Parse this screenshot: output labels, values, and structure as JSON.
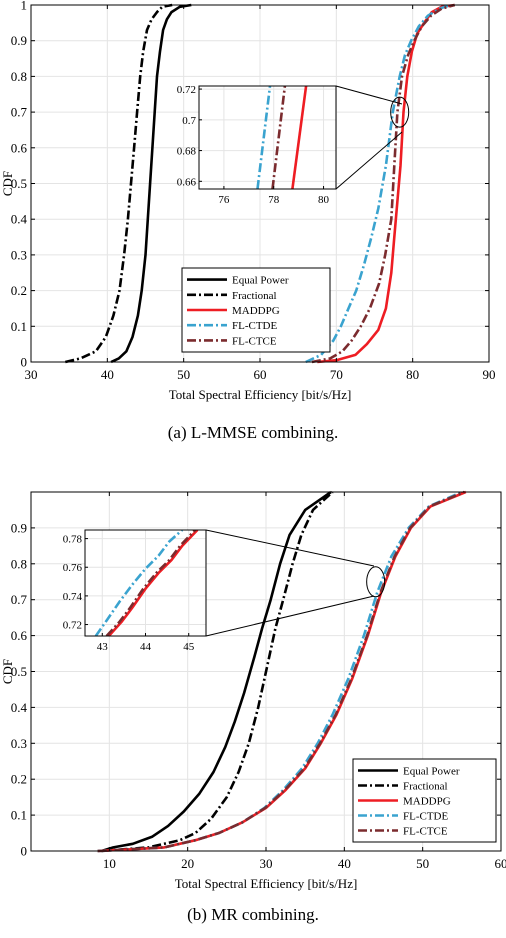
{
  "chart_data": [
    {
      "type": "line",
      "caption": "(a)  L-MMSE combining.",
      "xlabel": "Total Spectral Efficiency [bit/s/Hz]",
      "ylabel": "CDF",
      "xlim": [
        30,
        90
      ],
      "ylim": [
        0,
        1
      ],
      "xticks": [
        "30",
        "40",
        "50",
        "60",
        "70",
        "80",
        "90"
      ],
      "yticks": [
        "0",
        "0.1",
        "0.2",
        "0.3",
        "0.4",
        "0.5",
        "0.6",
        "0.7",
        "0.8",
        "0.9",
        "1"
      ],
      "grid": true,
      "legend_position": "lower-center",
      "series": [
        {
          "name": "Equal Power",
          "color": "#000000",
          "dash": "solid",
          "x": [
            40.5,
            41.5,
            42.5,
            43.3,
            44.0,
            44.5,
            45.0,
            45.3,
            45.6,
            45.9,
            46.2,
            46.5,
            46.9,
            47.3,
            47.8,
            48.4,
            49.5,
            51.0
          ],
          "y": [
            0,
            0.01,
            0.03,
            0.07,
            0.13,
            0.2,
            0.3,
            0.4,
            0.5,
            0.6,
            0.7,
            0.8,
            0.87,
            0.93,
            0.96,
            0.98,
            0.995,
            1
          ]
        },
        {
          "name": "Fractional",
          "color": "#000000",
          "dash": "dashdot",
          "x": [
            34.5,
            36.5,
            38.5,
            39.8,
            40.8,
            41.6,
            42.2,
            42.7,
            43.1,
            43.5,
            43.9,
            44.3,
            44.7,
            45.2,
            45.8,
            46.5,
            47.2,
            48.5
          ],
          "y": [
            0,
            0.01,
            0.03,
            0.07,
            0.13,
            0.2,
            0.3,
            0.4,
            0.5,
            0.6,
            0.7,
            0.8,
            0.87,
            0.93,
            0.96,
            0.98,
            0.995,
            1
          ]
        },
        {
          "name": "MADDPG",
          "color": "#ee1d23",
          "dash": "solid",
          "x": [
            67.5,
            70.0,
            72.5,
            74.0,
            75.5,
            76.5,
            77.2,
            77.6,
            78.0,
            78.4,
            78.8,
            79.3,
            79.9,
            80.6,
            81.5,
            82.5,
            83.8,
            85.5
          ],
          "y": [
            0,
            0.005,
            0.02,
            0.05,
            0.09,
            0.15,
            0.25,
            0.35,
            0.45,
            0.55,
            0.7,
            0.8,
            0.87,
            0.92,
            0.95,
            0.98,
            0.995,
            1
          ]
        },
        {
          "name": "FL-CTDE",
          "color": "#3aa3cf",
          "dash": "dashdot",
          "x": [
            66.0,
            68.0,
            69.6,
            70.6,
            71.6,
            72.6,
            73.6,
            74.6,
            75.5,
            76.5,
            77.4,
            78.3,
            79.0,
            79.8,
            80.8,
            82.0,
            83.5,
            85.0
          ],
          "y": [
            0,
            0.02,
            0.06,
            0.1,
            0.15,
            0.2,
            0.27,
            0.35,
            0.43,
            0.55,
            0.7,
            0.8,
            0.86,
            0.9,
            0.94,
            0.97,
            0.99,
            1
          ]
        },
        {
          "name": "FL-CTCE",
          "color": "#7b2b2e",
          "dash": "dashdot",
          "x": [
            66.8,
            69.2,
            70.8,
            72.0,
            73.2,
            74.4,
            75.6,
            76.4,
            77.2,
            77.6,
            78.0,
            78.6,
            79.4,
            80.2,
            81.2,
            82.4,
            83.8,
            85.5
          ],
          "y": [
            0,
            0.01,
            0.03,
            0.06,
            0.1,
            0.15,
            0.22,
            0.3,
            0.4,
            0.55,
            0.7,
            0.8,
            0.86,
            0.9,
            0.94,
            0.97,
            0.99,
            1
          ]
        }
      ],
      "inset": {
        "xlim": [
          75,
          80.5
        ],
        "ylim": [
          0.655,
          0.722
        ],
        "xticks": [
          "76",
          "78",
          "80"
        ],
        "yticks": [
          "0.66",
          "0.68",
          "0.7",
          "0.72"
        ],
        "lines": [
          {
            "series": "MADDPG",
            "x": [
              78.75,
              79.3
            ],
            "y": [
              0.655,
              0.722
            ]
          },
          {
            "series": "FL-CTDE",
            "x": [
              77.35,
              77.85
            ],
            "y": [
              0.655,
              0.722
            ]
          },
          {
            "series": "FL-CTCE",
            "x": [
              77.95,
              78.45
            ],
            "y": [
              0.655,
              0.722
            ]
          }
        ],
        "focus": {
          "x": 78.3,
          "y": 0.7
        }
      }
    },
    {
      "type": "line",
      "caption": "(b)  MR combining.",
      "xlabel": "Total Spectral Efficiency [bit/s/Hz]",
      "ylabel": "CDF",
      "xlim": [
        0,
        60
      ],
      "ylim": [
        0,
        1
      ],
      "xticks": [
        "10",
        "20",
        "30",
        "40",
        "50",
        "60"
      ],
      "yticks": [
        "0",
        "0.1",
        "0.2",
        "0.3",
        "0.4",
        "0.5",
        "0.6",
        "0.7",
        "0.8",
        "0.9"
      ],
      "grid": true,
      "legend_position": "lower-right",
      "series": [
        {
          "name": "Equal Power",
          "color": "#000000",
          "dash": "solid",
          "x": [
            9.0,
            10.5,
            13.0,
            15.5,
            17.5,
            19.5,
            21.5,
            23.3,
            24.8,
            26.0,
            27.2,
            28.5,
            29.5,
            30.6,
            31.8,
            33.0,
            35.0,
            38.3
          ],
          "y": [
            0,
            0.01,
            0.02,
            0.04,
            0.07,
            0.11,
            0.16,
            0.22,
            0.29,
            0.36,
            0.44,
            0.54,
            0.62,
            0.7,
            0.8,
            0.88,
            0.95,
            1
          ]
        },
        {
          "name": "Fractional",
          "color": "#000000",
          "dash": "dashdot",
          "x": [
            9.0,
            12.0,
            15.0,
            17.0,
            19.0,
            21.0,
            23.0,
            25.0,
            26.5,
            27.8,
            29.0,
            30.2,
            31.2,
            32.2,
            33.4,
            34.5,
            36.0,
            38.5
          ],
          "y": [
            0,
            0.005,
            0.01,
            0.02,
            0.03,
            0.05,
            0.09,
            0.15,
            0.22,
            0.3,
            0.4,
            0.52,
            0.62,
            0.7,
            0.8,
            0.88,
            0.95,
            1
          ]
        },
        {
          "name": "MADDPG",
          "color": "#ee1d23",
          "dash": "solid",
          "x": [
            8.5,
            13.0,
            17.0,
            21.0,
            24.0,
            27.0,
            30.0,
            32.5,
            35.0,
            37.0,
            39.0,
            41.0,
            43.0,
            44.7,
            46.5,
            48.5,
            51.0,
            55.5
          ],
          "y": [
            0,
            0.005,
            0.01,
            0.03,
            0.05,
            0.08,
            0.12,
            0.17,
            0.23,
            0.3,
            0.38,
            0.48,
            0.6,
            0.72,
            0.82,
            0.9,
            0.96,
            1
          ]
        },
        {
          "name": "FL-CTDE",
          "color": "#3aa3cf",
          "dash": "dashdot",
          "x": [
            8.5,
            13.0,
            17.0,
            21.0,
            24.0,
            27.0,
            29.8,
            32.2,
            34.6,
            36.6,
            38.5,
            40.5,
            42.5,
            44.2,
            46.0,
            48.2,
            50.8,
            55.0
          ],
          "y": [
            0,
            0.005,
            0.01,
            0.03,
            0.05,
            0.08,
            0.12,
            0.17,
            0.23,
            0.3,
            0.38,
            0.48,
            0.6,
            0.72,
            0.82,
            0.9,
            0.96,
            1
          ]
        },
        {
          "name": "FL-CTCE",
          "color": "#7b2b2e",
          "dash": "dashdot",
          "x": [
            8.5,
            13.0,
            17.0,
            21.0,
            24.0,
            27.0,
            29.9,
            32.4,
            34.9,
            36.9,
            38.9,
            40.9,
            42.9,
            44.6,
            46.4,
            48.4,
            50.9,
            55.3
          ],
          "y": [
            0,
            0.005,
            0.01,
            0.03,
            0.05,
            0.08,
            0.12,
            0.17,
            0.23,
            0.3,
            0.38,
            0.48,
            0.6,
            0.72,
            0.82,
            0.9,
            0.96,
            1
          ]
        }
      ],
      "inset": {
        "xlim": [
          42.6,
          45.4
        ],
        "ylim": [
          0.712,
          0.786
        ],
        "xticks": [
          "43",
          "44",
          "45"
        ],
        "yticks": [
          "0.72",
          "0.74",
          "0.76",
          "0.78"
        ],
        "lines": [
          {
            "series": "MADDPG",
            "x": [
              43.15,
              43.45,
              43.7,
              44.0,
              44.3,
              44.6,
              44.85,
              45.2
            ],
            "y": [
              0.712,
              0.722,
              0.732,
              0.745,
              0.756,
              0.765,
              0.775,
              0.786
            ]
          },
          {
            "series": "FL-CTDE",
            "x": [
              42.85,
              43.15,
              43.4,
              43.7,
              44.0,
              44.3,
              44.55,
              44.85
            ],
            "y": [
              0.712,
              0.725,
              0.736,
              0.748,
              0.759,
              0.768,
              0.778,
              0.786
            ]
          },
          {
            "series": "FL-CTCE",
            "x": [
              43.1,
              43.4,
              43.65,
              43.95,
              44.25,
              44.55,
              44.8,
              45.15
            ],
            "y": [
              0.712,
              0.722,
              0.732,
              0.745,
              0.756,
              0.765,
              0.775,
              0.786
            ]
          }
        ],
        "focus": {
          "x": 44.0,
          "y": 0.75
        }
      }
    }
  ]
}
